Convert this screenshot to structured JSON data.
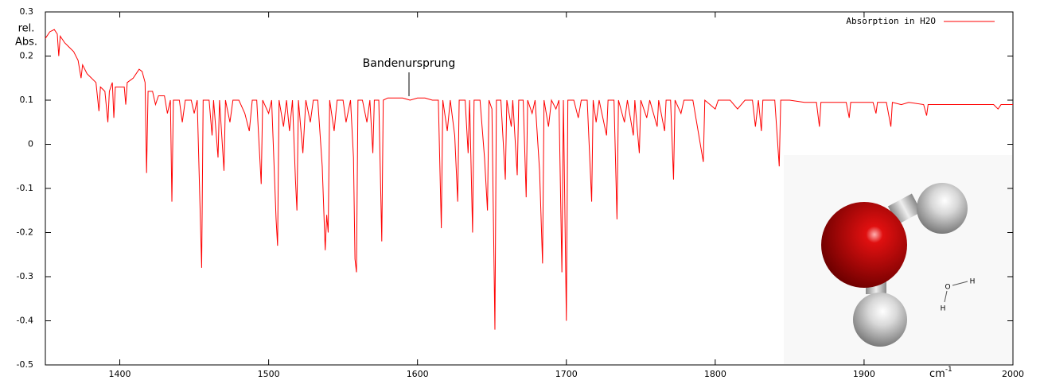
{
  "chart_data": {
    "type": "line",
    "y_label": [
      "rel.",
      "Abs."
    ],
    "x_label": {
      "base": "cm",
      "exponent": "-1"
    },
    "annotation": "Bandenursprung",
    "molecule_labels": [
      "O",
      "H",
      "H"
    ],
    "xlim": [
      1350,
      2000
    ],
    "xticks": [
      1400,
      1500,
      1600,
      1700,
      1800,
      1900,
      2000
    ],
    "ylim": [
      -0.5,
      0.3
    ],
    "yticks": [
      -0.5,
      -0.4,
      -0.3,
      -0.2,
      -0.1,
      0,
      0.1,
      0.2,
      0.3
    ],
    "legend": "top-right",
    "x": [
      1350,
      1353,
      1356,
      1358,
      1359,
      1360,
      1363,
      1366,
      1369,
      1372,
      1374,
      1375,
      1378,
      1381,
      1384,
      1386,
      1387,
      1390,
      1392,
      1393,
      1395,
      1396,
      1397,
      1400,
      1403,
      1404,
      1405,
      1409,
      1413,
      1415,
      1417,
      1418,
      1419,
      1422,
      1424,
      1426,
      1430,
      1432,
      1434,
      1435,
      1436,
      1440,
      1442,
      1444,
      1448,
      1450,
      1452,
      1455,
      1456,
      1460,
      1462,
      1463,
      1466,
      1467,
      1470,
      1471,
      1474,
      1476,
      1480,
      1484,
      1487,
      1489,
      1492,
      1495,
      1496,
      1500,
      1502,
      1505,
      1506,
      1507,
      1510,
      1512,
      1514,
      1516,
      1518,
      1519,
      1520,
      1523,
      1525,
      1528,
      1530,
      1533,
      1536,
      1538,
      1539,
      1540,
      1541,
      1544,
      1546,
      1550,
      1552,
      1555,
      1557,
      1558,
      1559,
      1560,
      1563,
      1566,
      1568,
      1570,
      1571,
      1574,
      1576,
      1577,
      1580,
      1585,
      1590,
      1595,
      1600,
      1605,
      1610,
      1614,
      1616,
      1617,
      1620,
      1622,
      1625,
      1627,
      1628,
      1632,
      1634,
      1635,
      1637,
      1638,
      1642,
      1645,
      1647,
      1648,
      1650,
      1652,
      1653,
      1656,
      1659,
      1660,
      1663,
      1664,
      1667,
      1668,
      1671,
      1673,
      1674,
      1677,
      1679,
      1682,
      1684,
      1685,
      1688,
      1690,
      1693,
      1695,
      1697,
      1698,
      1700,
      1701,
      1705,
      1708,
      1710,
      1714,
      1717,
      1718,
      1720,
      1722,
      1727,
      1728,
      1732,
      1734,
      1735,
      1739,
      1741,
      1745,
      1746,
      1749,
      1750,
      1754,
      1756,
      1761,
      1762,
      1766,
      1767,
      1770,
      1772,
      1773,
      1777,
      1779,
      1785,
      1792,
      1793,
      1800,
      1802,
      1810,
      1815,
      1820,
      1825,
      1827,
      1829,
      1831,
      1832,
      1836,
      1840,
      1843,
      1844,
      1850,
      1860,
      1868,
      1870,
      1871,
      1880,
      1888,
      1890,
      1891,
      1900,
      1906,
      1908,
      1909,
      1915,
      1918,
      1919,
      1925,
      1930,
      1940,
      1942,
      1943,
      1950,
      1960,
      1970,
      1980,
      1987,
      1990,
      1992,
      2000
    ],
    "series": [
      {
        "name": "Absorption in H2O",
        "color": "#ff0000",
        "values": [
          0.24,
          0.255,
          0.26,
          0.25,
          0.2,
          0.245,
          0.23,
          0.22,
          0.21,
          0.19,
          0.15,
          0.18,
          0.16,
          0.15,
          0.14,
          0.075,
          0.13,
          0.12,
          0.05,
          0.12,
          0.14,
          0.06,
          0.13,
          0.13,
          0.13,
          0.09,
          0.14,
          0.15,
          0.17,
          0.165,
          0.14,
          -0.065,
          0.12,
          0.12,
          0.09,
          0.11,
          0.11,
          0.07,
          0.1,
          -0.13,
          0.1,
          0.1,
          0.05,
          0.1,
          0.1,
          0.07,
          0.1,
          -0.28,
          0.1,
          0.1,
          0.02,
          0.1,
          -0.03,
          0.1,
          -0.06,
          0.1,
          0.05,
          0.1,
          0.1,
          0.07,
          0.03,
          0.1,
          0.1,
          -0.09,
          0.1,
          0.07,
          0.1,
          -0.17,
          -0.23,
          0.1,
          0.04,
          0.1,
          0.03,
          0.1,
          -0.08,
          -0.15,
          0.1,
          -0.02,
          0.1,
          0.05,
          0.1,
          0.1,
          -0.05,
          -0.24,
          -0.16,
          -0.2,
          0.1,
          0.03,
          0.1,
          0.1,
          0.05,
          0.1,
          -0.03,
          -0.26,
          -0.29,
          0.1,
          0.1,
          0.05,
          0.1,
          -0.02,
          0.1,
          0.1,
          -0.22,
          0.1,
          0.105,
          0.105,
          0.105,
          0.1,
          0.105,
          0.105,
          0.1,
          0.1,
          -0.19,
          0.1,
          0.03,
          0.1,
          0.02,
          -0.13,
          0.1,
          0.1,
          -0.02,
          0.1,
          -0.2,
          0.1,
          0.1,
          -0.03,
          -0.15,
          0.1,
          0.08,
          -0.42,
          0.1,
          0.1,
          -0.08,
          0.1,
          0.04,
          0.1,
          -0.07,
          0.1,
          0.1,
          -0.12,
          0.1,
          0.07,
          0.1,
          -0.06,
          -0.27,
          0.1,
          0.04,
          0.1,
          0.08,
          0.1,
          -0.29,
          0.1,
          -0.4,
          0.1,
          0.1,
          0.06,
          0.1,
          0.1,
          -0.13,
          0.1,
          0.05,
          0.1,
          0.02,
          0.1,
          0.1,
          -0.17,
          0.1,
          0.05,
          0.1,
          0.02,
          0.1,
          -0.02,
          0.1,
          0.06,
          0.1,
          0.04,
          0.1,
          0.03,
          0.1,
          0.1,
          -0.08,
          0.1,
          0.07,
          0.1,
          0.1,
          -0.04,
          0.1,
          0.08,
          0.1,
          0.1,
          0.08,
          0.1,
          0.1,
          0.04,
          0.1,
          0.03,
          0.1,
          0.1,
          0.1,
          -0.05,
          0.1,
          0.1,
          0.095,
          0.095,
          0.04,
          0.095,
          0.095,
          0.095,
          0.06,
          0.095,
          0.095,
          0.095,
          0.07,
          0.095,
          0.095,
          0.04,
          0.095,
          0.09,
          0.095,
          0.09,
          0.065,
          0.09,
          0.09,
          0.09,
          0.09,
          0.09,
          0.09,
          0.08,
          0.09,
          0.09
        ]
      }
    ]
  }
}
